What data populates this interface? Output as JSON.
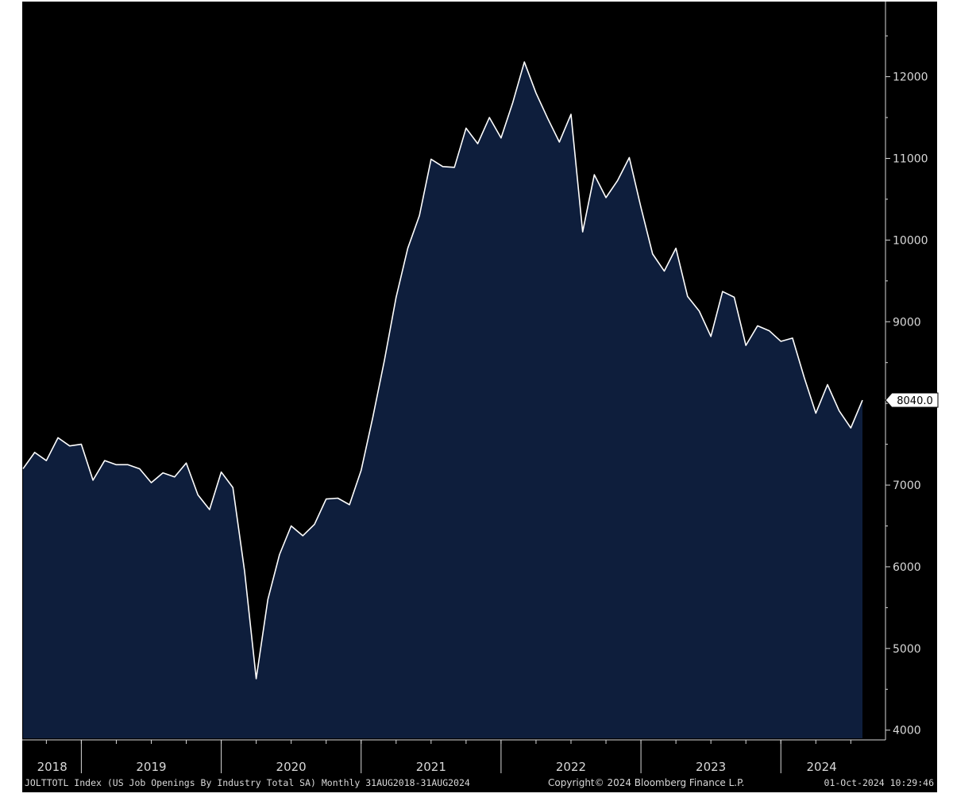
{
  "colors": {
    "background": "#000000",
    "area_fill": "#0e1e3c",
    "line": "#ffffff",
    "text": "#d8d8d8"
  },
  "footer": {
    "left": "JOLTTOTL Index (US Job Openings By Industry Total SA)  Monthly 31AUG2018-31AUG2024",
    "center": "Copyright© 2024 Bloomberg Finance L.P.",
    "right": "01-Oct-2024 10:29:46"
  },
  "chart_data": {
    "type": "area",
    "title": "",
    "xlabel": "",
    "ylabel": "",
    "y_axis_position": "right",
    "ylim": [
      3900,
      12900
    ],
    "yticks": [
      4000,
      5000,
      6000,
      7000,
      8000,
      9000,
      10000,
      11000,
      12000
    ],
    "ytick_labels": [
      "4000",
      "5000",
      "6000",
      "7000",
      "8000",
      "9000",
      "10000",
      "11000",
      "12000"
    ],
    "x_start": "2018-08",
    "x_end": "2024-08",
    "years": [
      "2018",
      "2019",
      "2020",
      "2021",
      "2022",
      "2023",
      "2024"
    ],
    "grid": false,
    "last_value_label": "8040.0",
    "series": [
      {
        "values": [
          7200,
          7400,
          7300,
          7580,
          7480,
          7500,
          7060,
          7300,
          7250,
          7250,
          7200,
          7030,
          7150,
          7100,
          7270,
          6880,
          6700,
          7160,
          6970,
          5950,
          4630,
          5600,
          6150,
          6500,
          6380,
          6520,
          6830,
          6840,
          6760,
          7180,
          7830,
          8530,
          9300,
          9900,
          10300,
          10990,
          10900,
          10890,
          11370,
          11180,
          11500,
          11250,
          11680,
          12180,
          11800,
          11490,
          11200,
          11540,
          10100,
          10800,
          10520,
          10730,
          11010,
          10400,
          9830,
          9620,
          9900,
          9310,
          9130,
          8820,
          9370,
          9300,
          8710,
          8950,
          8890,
          8760,
          8800,
          8320,
          7880,
          8230,
          7910,
          7700,
          8040
        ]
      }
    ]
  }
}
